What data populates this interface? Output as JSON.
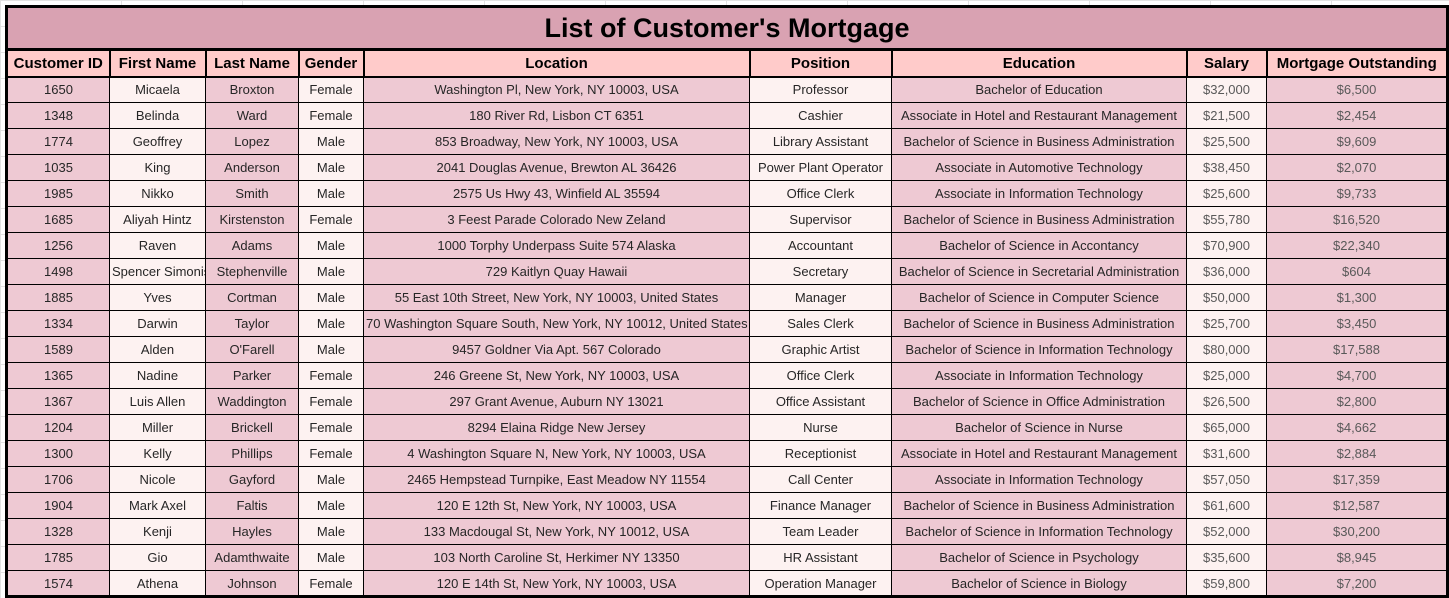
{
  "table": {
    "title": "List of Customer's Mortgage",
    "columns": [
      "Customer ID",
      "First Name",
      "Last Name",
      "Gender",
      "Location",
      "Position",
      "Education",
      "Salary",
      "Mortgage Outstanding"
    ],
    "rows": [
      [
        "1650",
        "Micaela",
        "Broxton",
        "Female",
        "Washington Pl, New York, NY 10003, USA",
        "Professor",
        "Bachelor of Education",
        "$32,000",
        "$6,500"
      ],
      [
        "1348",
        "Belinda",
        "Ward",
        "Female",
        "180 River Rd, Lisbon CT 6351",
        "Cashier",
        "Associate in Hotel and Restaurant Management",
        "$21,500",
        "$2,454"
      ],
      [
        "1774",
        "Geoffrey",
        "Lopez",
        "Male",
        "853 Broadway, New York, NY 10003, USA",
        "Library Assistant",
        "Bachelor of Science in Business Administration",
        "$25,500",
        "$9,609"
      ],
      [
        "1035",
        "King",
        "Anderson",
        "Male",
        "2041 Douglas Avenue, Brewton AL 36426",
        "Power Plant Operator",
        "Associate in Automotive Technology",
        "$38,450",
        "$2,070"
      ],
      [
        "1985",
        "Nikko",
        "Smith",
        "Male",
        "2575 Us Hwy 43, Winfield AL 35594",
        "Office Clerk",
        "Associate in Information Technology",
        "$25,600",
        "$9,733"
      ],
      [
        "1685",
        "Aliyah Hintz",
        "Kirstenston",
        "Female",
        "3 Feest Parade Colorado New Zeland",
        "Supervisor",
        "Bachelor of Science in Business Administration",
        "$55,780",
        "$16,520"
      ],
      [
        "1256",
        "Raven",
        "Adams",
        "Male",
        "1000 Torphy Underpass Suite 574 Alaska",
        "Accountant",
        "Bachelor of Science in Accontancy",
        "$70,900",
        "$22,340"
      ],
      [
        "1498",
        "Spencer Simonis",
        "Stephenville",
        "Male",
        "729 Kaitlyn Quay Hawaii",
        "Secretary",
        "Bachelor of Science in Secretarial Administration",
        "$36,000",
        "$604"
      ],
      [
        "1885",
        "Yves",
        "Cortman",
        "Male",
        "55 East 10th Street, New York, NY 10003, United States",
        "Manager",
        "Bachelor of Science in Computer Science",
        "$50,000",
        "$1,300"
      ],
      [
        "1334",
        "Darwin",
        "Taylor",
        "Male",
        "70 Washington Square South, New York, NY 10012, United States",
        "Sales Clerk",
        "Bachelor of Science in Business Administration",
        "$25,700",
        "$3,450"
      ],
      [
        "1589",
        "Alden",
        "O'Farell",
        "Male",
        "9457 Goldner Via Apt. 567 Colorado",
        "Graphic Artist",
        "Bachelor of Science in Information Technology",
        "$80,000",
        "$17,588"
      ],
      [
        "1365",
        "Nadine",
        "Parker",
        "Female",
        "246 Greene St, New York, NY 10003, USA",
        "Office Clerk",
        "Associate in Information Technology",
        "$25,000",
        "$4,700"
      ],
      [
        "1367",
        "Luis Allen",
        "Waddington",
        "Female",
        "297 Grant Avenue, Auburn NY 13021",
        "Office Assistant",
        "Bachelor of Science in Office Administration",
        "$26,500",
        "$2,800"
      ],
      [
        "1204",
        "Miller",
        "Brickell",
        "Female",
        "8294 Elaina Ridge New Jersey",
        "Nurse",
        "Bachelor of Science in Nurse",
        "$65,000",
        "$4,662"
      ],
      [
        "1300",
        "Kelly",
        "Phillips",
        "Female",
        "4 Washington Square N, New York, NY 10003, USA",
        "Receptionist",
        "Associate in Hotel and Restaurant Management",
        "$31,600",
        "$2,884"
      ],
      [
        "1706",
        "Nicole",
        "Gayford",
        "Male",
        "2465 Hempstead Turnpike, East Meadow NY 11554",
        "Call Center",
        "Associate in Information Technology",
        "$57,050",
        "$17,359"
      ],
      [
        "1904",
        "Mark Axel",
        "Faltis",
        "Male",
        "120 E 12th St, New York, NY 10003, USA",
        "Finance Manager",
        "Bachelor of Science in Business Administration",
        "$61,600",
        "$12,587"
      ],
      [
        "1328",
        "Kenji",
        "Hayles",
        "Male",
        "133 Macdougal St, New York, NY 10012, USA",
        "Team Leader",
        "Bachelor of Science in Information Technology",
        "$52,000",
        "$30,200"
      ],
      [
        "1785",
        "Gio",
        "Adamthwaite",
        "Male",
        "103 North Caroline St, Herkimer NY 13350",
        "HR Assistant",
        "Bachelor of Science in Psychology",
        "$35,600",
        "$8,945"
      ],
      [
        "1574",
        "Athena",
        "Johnson",
        "Female",
        "120 E 14th St, New York, NY 10003, USA",
        "Operation Manager",
        "Bachelor of Science in Biology",
        "$59,800",
        "$7,200"
      ]
    ]
  },
  "colors": {
    "title_bg": "#d9a2b2",
    "header_bg": "#ffcbca",
    "cell_dark": "#eec9d3",
    "cell_light": "#fdf2f1",
    "border": "#000000",
    "text": "#262626",
    "money_text": "#595959"
  }
}
